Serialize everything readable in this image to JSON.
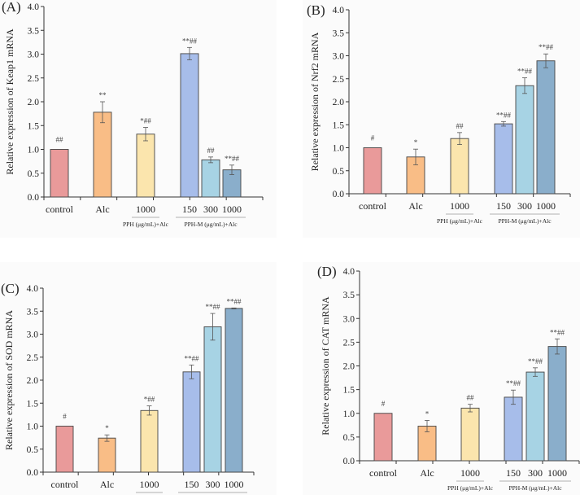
{
  "figure": {
    "panels": [
      "A",
      "B",
      "C",
      "D"
    ]
  },
  "chart_data": [
    {
      "type": "bar",
      "panel": "(A)",
      "title": "",
      "xlabel": "",
      "ylabel": "Relative expression of Keap1 mRNA",
      "ylim": [
        0,
        4.0
      ],
      "yticks": [
        "0.0",
        "0.5",
        "1.0",
        "1.5",
        "2.0",
        "2.5",
        "3.0",
        "3.5",
        "4.0"
      ],
      "categories": [
        "control",
        "Alc",
        "1000",
        "150",
        "300",
        "1000"
      ],
      "groups": [
        {
          "label": "PPH (μg/mL)+Alc",
          "members": [
            2
          ]
        },
        {
          "label": "PPH-M (μg/mL)+Alc",
          "members": [
            3,
            4,
            5
          ]
        }
      ],
      "values": [
        1.0,
        1.78,
        1.32,
        3.01,
        0.78,
        0.57
      ],
      "errors": [
        0.0,
        0.22,
        0.14,
        0.13,
        0.06,
        0.1
      ],
      "significance": [
        "##",
        "**",
        "*##",
        "**##",
        "##",
        "**##"
      ],
      "colors": [
        "#e99a9a",
        "#f9bd86",
        "#fbe5ad",
        "#a7bdea",
        "#a7d3e4",
        "#8aaecb"
      ],
      "grid": false,
      "legend": "none"
    },
    {
      "type": "bar",
      "panel": "(B)",
      "title": "",
      "xlabel": "",
      "ylabel": "Relative expression of Nrf2 mRNA",
      "ylim": [
        0,
        4.0
      ],
      "yticks": [
        "0.0",
        "0.5",
        "1.0",
        "1.5",
        "2.0",
        "2.5",
        "3.0",
        "3.5",
        "4.0"
      ],
      "categories": [
        "control",
        "Alc",
        "1000",
        "150",
        "300",
        "1000"
      ],
      "groups": [
        {
          "label": "PPH (μg/mL)+Alc",
          "members": [
            2
          ]
        },
        {
          "label": "PPH-M (μg/mL)+Alc",
          "members": [
            3,
            4,
            5
          ]
        }
      ],
      "values": [
        1.0,
        0.8,
        1.2,
        1.52,
        2.35,
        2.89
      ],
      "errors": [
        0.0,
        0.17,
        0.13,
        0.05,
        0.17,
        0.15
      ],
      "significance": [
        "#",
        "*",
        "##",
        "**##",
        "**##",
        "**##"
      ],
      "colors": [
        "#e99a9a",
        "#f9bd86",
        "#fbe5ad",
        "#a7bdea",
        "#a7d3e4",
        "#8aaecb"
      ],
      "grid": false,
      "legend": "none"
    },
    {
      "type": "bar",
      "panel": "(C)",
      "title": "",
      "xlabel": "",
      "ylabel": "Relative expression of SOD mRNA",
      "ylim": [
        0,
        4.0
      ],
      "yticks": [
        "0.0",
        "0.5",
        "1.0",
        "1.5",
        "2.0",
        "2.5",
        "3.0",
        "3.5",
        "4.0"
      ],
      "categories": [
        "control",
        "Alc",
        "1000",
        "150",
        "300",
        "1000"
      ],
      "groups": [
        {
          "label": "PPH (μg/mL)+Alc",
          "members": [
            2
          ]
        },
        {
          "label": "PPH-M (μg/mL)+Alc",
          "members": [
            3,
            4,
            5
          ]
        }
      ],
      "values": [
        1.0,
        0.74,
        1.34,
        2.18,
        3.16,
        3.56
      ],
      "errors": [
        0.0,
        0.07,
        0.1,
        0.15,
        0.29,
        0.01
      ],
      "significance": [
        "#",
        "*",
        "*##",
        "**##",
        "**##",
        "**##"
      ],
      "colors": [
        "#e99a9a",
        "#f9bd86",
        "#fbe5ad",
        "#a7bdea",
        "#a7d3e4",
        "#8aaecb"
      ],
      "grid": false,
      "legend": "none"
    },
    {
      "type": "bar",
      "panel": "(D)",
      "title": "",
      "xlabel": "",
      "ylabel": "Relative expression of CAT mRNA",
      "ylim": [
        0,
        4.0
      ],
      "yticks": [
        "0.0",
        "0.5",
        "1.0",
        "1.5",
        "2.0",
        "2.5",
        "3.0",
        "3.5",
        "4.0"
      ],
      "categories": [
        "control",
        "Alc",
        "1000",
        "150",
        "300",
        "1000"
      ],
      "groups": [
        {
          "label": "PPH (μg/mL)+Alc",
          "members": [
            2
          ]
        },
        {
          "label": "PPH-M (μg/mL)+Alc",
          "members": [
            3,
            4,
            5
          ]
        }
      ],
      "values": [
        1.0,
        0.73,
        1.11,
        1.34,
        1.87,
        2.41
      ],
      "errors": [
        0.0,
        0.12,
        0.08,
        0.15,
        0.09,
        0.16
      ],
      "significance": [
        "#",
        "*",
        "##",
        "**##",
        "**##",
        "**##"
      ],
      "colors": [
        "#e99a9a",
        "#f9bd86",
        "#fbe5ad",
        "#a7bdea",
        "#a7d3e4",
        "#8aaecb"
      ],
      "grid": false,
      "legend": "none"
    }
  ]
}
